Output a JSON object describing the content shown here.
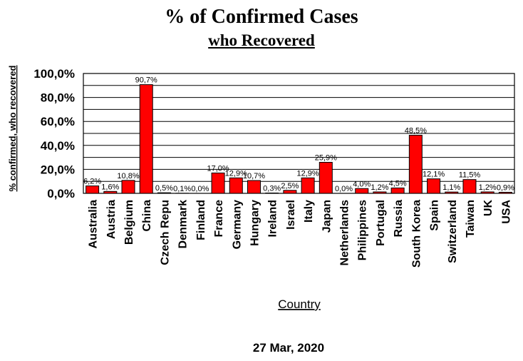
{
  "title": "% of Confirmed Cases",
  "subtitle": "who Recovered",
  "footer": "27 Mar, 2020",
  "colors": {
    "bar": "#ff0000",
    "bar_stroke": "#000000",
    "grid": "#000000"
  },
  "chart_data": {
    "type": "bar",
    "title": "% of Confirmed Cases who Recovered",
    "xlabel": "Country",
    "ylabel": "% confirmed, who recovered",
    "ylim": [
      0,
      100
    ],
    "yticks": [
      "0,0%",
      "20,0%",
      "40,0%",
      "60,0%",
      "80,0%",
      "100,0%"
    ],
    "grid": true,
    "legend": "none",
    "categories": [
      "Australia",
      "Austria",
      "Belgium",
      "China",
      "Czech Repu",
      "Denmark",
      "Finland",
      "France",
      "Germany",
      "Hungary",
      "Ireland",
      "Israel",
      "Italy",
      "Japan",
      "Netherlands",
      "Philippines",
      "Portugal",
      "Russia",
      "South Korea",
      "Spain",
      "Switzerland",
      "Taiwan",
      "UK",
      "USA"
    ],
    "values": [
      6.2,
      1.6,
      10.8,
      90.7,
      0.5,
      0.1,
      0.0,
      17.0,
      12.9,
      10.7,
      0.3,
      2.5,
      12.9,
      25.9,
      0.0,
      4.0,
      1.2,
      4.5,
      48.5,
      12.1,
      1.1,
      11.5,
      1.2,
      0.9
    ],
    "data_labels": [
      "6,2%",
      "1,6%",
      "10,8%",
      "90,7%",
      "0,5%",
      "0,1%",
      "0,0%",
      "17,0%",
      "12,9%",
      "10,7%",
      "0,3%",
      "2,5%",
      "12,9%",
      "25,9%",
      "0,0%",
      "4,0%",
      "1,2%",
      "4,5%",
      "48,5%",
      "12,1%",
      "1,1%",
      "11,5%",
      "1,2%",
      "0,9%"
    ]
  }
}
